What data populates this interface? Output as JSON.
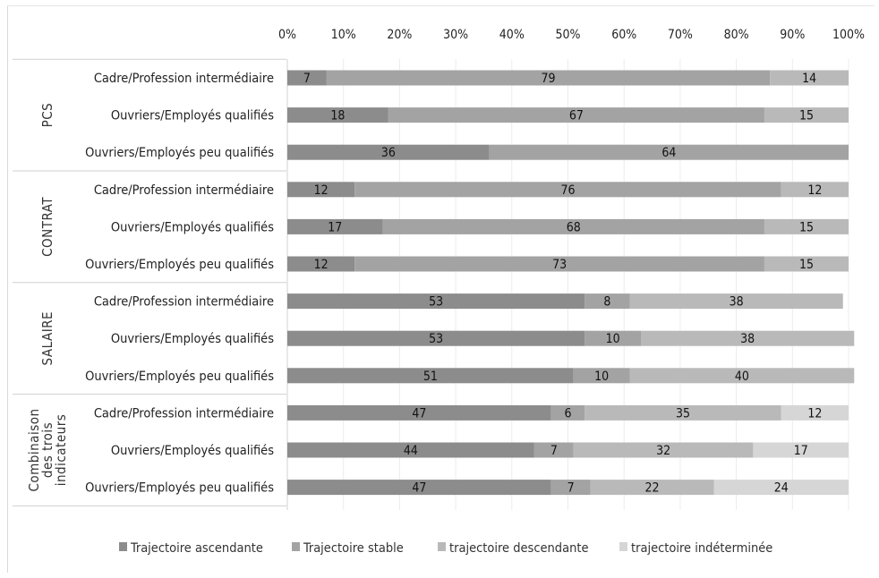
{
  "chart_data": {
    "type": "bar",
    "orientation": "horizontal",
    "stacked": "percent",
    "x_ticks": [
      "0%",
      "10%",
      "20%",
      "30%",
      "40%",
      "50%",
      "60%",
      "70%",
      "80%",
      "90%",
      "100%"
    ],
    "xlim": [
      0,
      100
    ],
    "legend_position": "bottom",
    "groups": [
      {
        "name": "PCS",
        "rows": [
          {
            "label": "Cadre/Profession intermédiaire",
            "values": [
              7,
              79,
              14,
              0
            ]
          },
          {
            "label": "Ouvriers/Employés qualifiés",
            "values": [
              18,
              67,
              15,
              0
            ]
          },
          {
            "label": "Ouvriers/Employés peu qualifiés",
            "values": [
              36,
              64,
              0,
              0
            ]
          }
        ]
      },
      {
        "name": "CONTRAT",
        "rows": [
          {
            "label": "Cadre/Profession intermédiaire",
            "values": [
              12,
              76,
              12,
              0
            ]
          },
          {
            "label": "Ouvriers/Employés qualifiés",
            "values": [
              17,
              68,
              15,
              0
            ]
          },
          {
            "label": "Ouvriers/Employés peu qualifiés",
            "values": [
              12,
              73,
              15,
              0
            ]
          }
        ]
      },
      {
        "name": "SALAIRE",
        "rows": [
          {
            "label": "Cadre/Profession intermédiaire",
            "values": [
              53,
              8,
              38,
              0
            ]
          },
          {
            "label": "Ouvriers/Employés qualifiés",
            "values": [
              53,
              10,
              38,
              0
            ]
          },
          {
            "label": "Ouvriers/Employés peu qualifiés",
            "values": [
              51,
              10,
              40,
              0
            ]
          }
        ]
      },
      {
        "name": "Combinaison des trois indicateurs",
        "rows": [
          {
            "label": "Cadre/Profession intermédiaire",
            "values": [
              47,
              6,
              35,
              12
            ]
          },
          {
            "label": "Ouvriers/Employés qualifiés",
            "values": [
              44,
              7,
              32,
              17
            ]
          },
          {
            "label": "Ouvriers/Employés peu qualifiés",
            "values": [
              47,
              7,
              22,
              24
            ]
          }
        ]
      }
    ],
    "series": [
      {
        "name": "Trajectoire ascendante",
        "color": "#8c8c8c"
      },
      {
        "name": "Trajectoire stable",
        "color": "#a3a3a3"
      },
      {
        "name": "trajectoire descendante",
        "color": "#b9b9b9"
      },
      {
        "name": "trajectoire indéterminée",
        "color": "#d6d6d6"
      }
    ]
  }
}
